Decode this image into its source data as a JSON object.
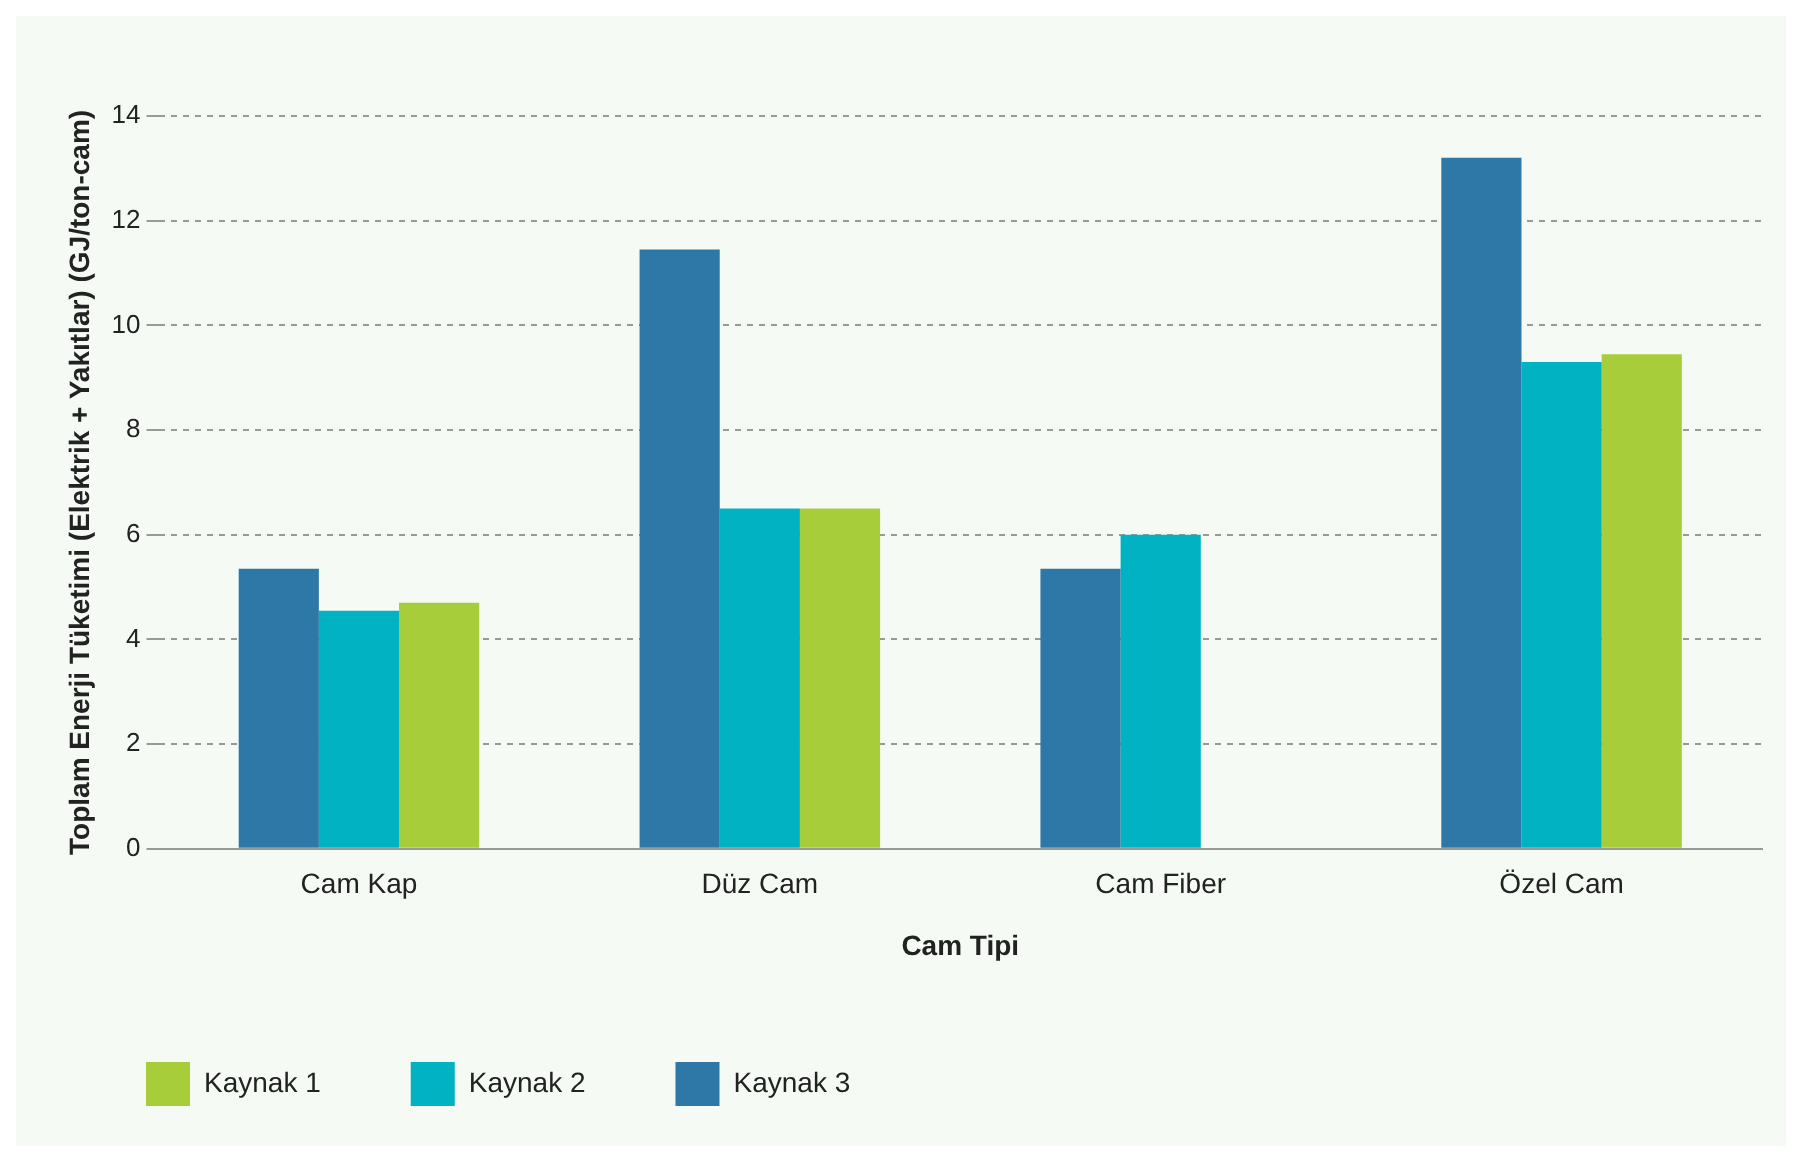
{
  "chart_data": {
    "type": "bar",
    "xlabel": "Cam Tipi",
    "ylabel": "Toplam Enerji Tüketimi (Elektrik + Yakıtlar) (GJ/ton-cam)",
    "categories": [
      "Cam Kap",
      "Düz Cam",
      "Cam Fiber",
      "Özel Cam"
    ],
    "series": [
      {
        "name": "Kaynak 1",
        "color": "#a8cd3a",
        "values": [
          4.7,
          6.5,
          null,
          9.45
        ]
      },
      {
        "name": "Kaynak 2",
        "color": "#00b2c2",
        "values": [
          4.55,
          6.5,
          6.0,
          9.3
        ]
      },
      {
        "name": "Kaynak 3",
        "color": "#2e78a8",
        "values": [
          5.35,
          11.45,
          5.35,
          13.2
        ]
      }
    ],
    "ylim": [
      0,
      14
    ],
    "yticks": [
      0,
      2,
      4,
      6,
      8,
      10,
      12,
      14
    ],
    "grid": "y",
    "legend": "bottom left"
  }
}
